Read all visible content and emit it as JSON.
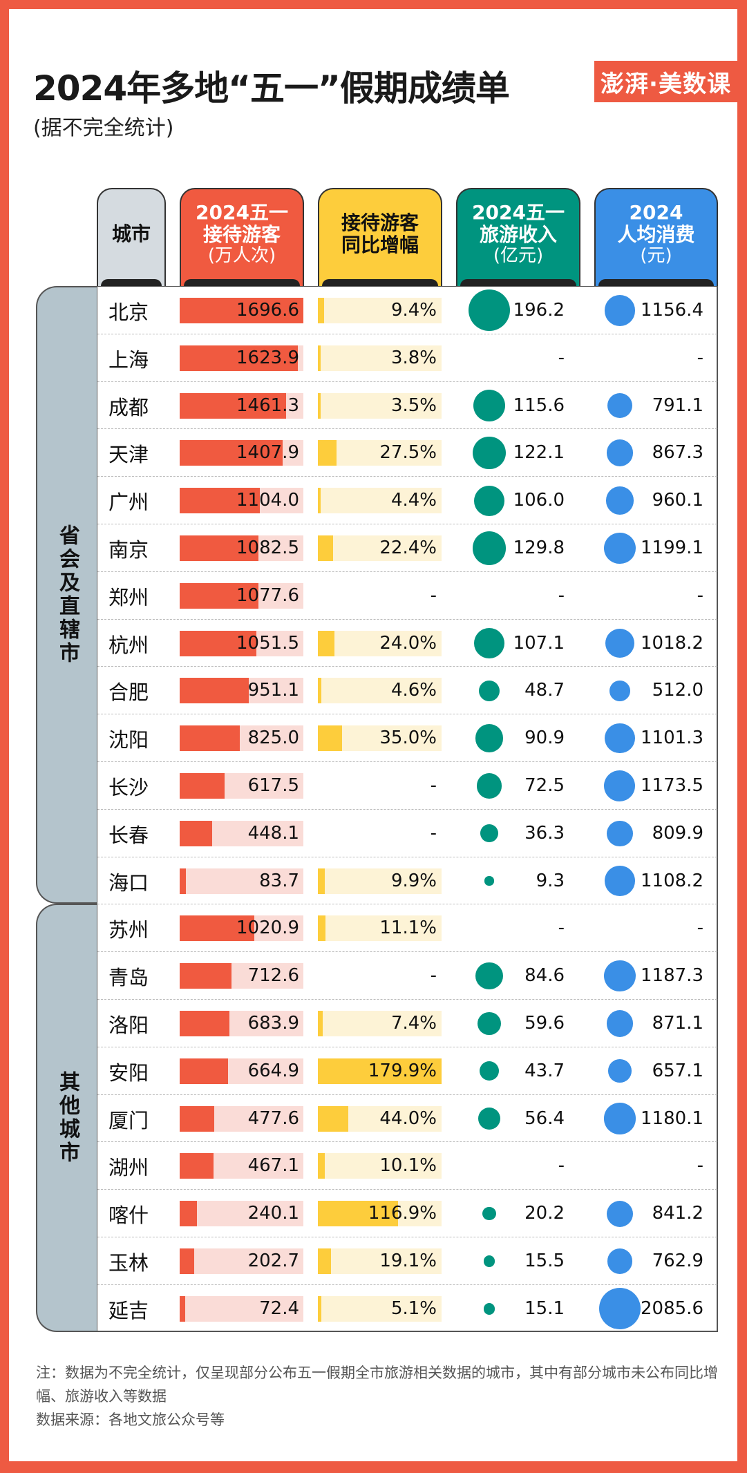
{
  "title": "2024年多地“五一”假期成绩单",
  "subtitle": "(据不完全统计)",
  "logo": "澎湃·美数课",
  "colors": {
    "red": "#f05a40",
    "red_bg": "#fadcd7",
    "yellow": "#fdcd3c",
    "yellow_bg": "#fdf3d6",
    "teal": "#00947f",
    "blue": "#3a8fe6",
    "gray": "#d5dbe0"
  },
  "headers": {
    "city": "城市",
    "visitors": {
      "l1": "2024五一",
      "l2": "接待游客",
      "unit": "(万人次)"
    },
    "growth": {
      "l1": "接待游客",
      "l2": "同比增幅"
    },
    "revenue": {
      "l1": "2024五一",
      "l2": "旅游收入",
      "unit": "(亿元)"
    },
    "spend": {
      "l1": "2024",
      "l2": "人均消费",
      "unit": "(元)"
    }
  },
  "groups": [
    {
      "label": "省会及直辖市",
      "rows": 13
    },
    {
      "label": "其他城市",
      "rows": 9
    }
  ],
  "rows": [
    {
      "city": "北京",
      "visitors": "1696.6",
      "growth": "9.4%",
      "revenue": "196.2",
      "spend": "1156.4"
    },
    {
      "city": "上海",
      "visitors": "1623.9",
      "growth": "3.8%",
      "revenue": "-",
      "spend": "-"
    },
    {
      "city": "成都",
      "visitors": "1461.3",
      "growth": "3.5%",
      "revenue": "115.6",
      "spend": "791.1"
    },
    {
      "city": "天津",
      "visitors": "1407.9",
      "growth": "27.5%",
      "revenue": "122.1",
      "spend": "867.3"
    },
    {
      "city": "广州",
      "visitors": "1104.0",
      "growth": "4.4%",
      "revenue": "106.0",
      "spend": "960.1"
    },
    {
      "city": "南京",
      "visitors": "1082.5",
      "growth": "22.4%",
      "revenue": "129.8",
      "spend": "1199.1"
    },
    {
      "city": "郑州",
      "visitors": "1077.6",
      "growth": "-",
      "revenue": "-",
      "spend": "-"
    },
    {
      "city": "杭州",
      "visitors": "1051.5",
      "growth": "24.0%",
      "revenue": "107.1",
      "spend": "1018.2"
    },
    {
      "city": "合肥",
      "visitors": "951.1",
      "growth": "4.6%",
      "revenue": "48.7",
      "spend": "512.0"
    },
    {
      "city": "沈阳",
      "visitors": "825.0",
      "growth": "35.0%",
      "revenue": "90.9",
      "spend": "1101.3"
    },
    {
      "city": "长沙",
      "visitors": "617.5",
      "growth": "-",
      "revenue": "72.5",
      "spend": "1173.5"
    },
    {
      "city": "长春",
      "visitors": "448.1",
      "growth": "-",
      "revenue": "36.3",
      "spend": "809.9"
    },
    {
      "city": "海口",
      "visitors": "83.7",
      "growth": "9.9%",
      "revenue": "9.3",
      "spend": "1108.2"
    },
    {
      "city": "苏州",
      "visitors": "1020.9",
      "growth": "11.1%",
      "revenue": "-",
      "spend": "-"
    },
    {
      "city": "青岛",
      "visitors": "712.6",
      "growth": "-",
      "revenue": "84.6",
      "spend": "1187.3"
    },
    {
      "city": "洛阳",
      "visitors": "683.9",
      "growth": "7.4%",
      "revenue": "59.6",
      "spend": "871.1"
    },
    {
      "city": "安阳",
      "visitors": "664.9",
      "growth": "179.9%",
      "revenue": "43.7",
      "spend": "657.1"
    },
    {
      "city": "厦门",
      "visitors": "477.6",
      "growth": "44.0%",
      "revenue": "56.4",
      "spend": "1180.1"
    },
    {
      "city": "湖州",
      "visitors": "467.1",
      "growth": "10.1%",
      "revenue": "-",
      "spend": "-"
    },
    {
      "city": "喀什",
      "visitors": "240.1",
      "growth": "116.9%",
      "revenue": "20.2",
      "spend": "841.2"
    },
    {
      "city": "玉林",
      "visitors": "202.7",
      "growth": "19.1%",
      "revenue": "15.5",
      "spend": "762.9"
    },
    {
      "city": "延吉",
      "visitors": "72.4",
      "growth": "5.1%",
      "revenue": "15.1",
      "spend": "2085.6"
    }
  ],
  "notes": [
    "注：数据为不完全统计，仅呈现部分公布五一假期全市旅游相关数据的城市，其中有部分城市未公布同比增幅、旅游收入等数据",
    "数据来源：各地文旅公众号等"
  ]
}
